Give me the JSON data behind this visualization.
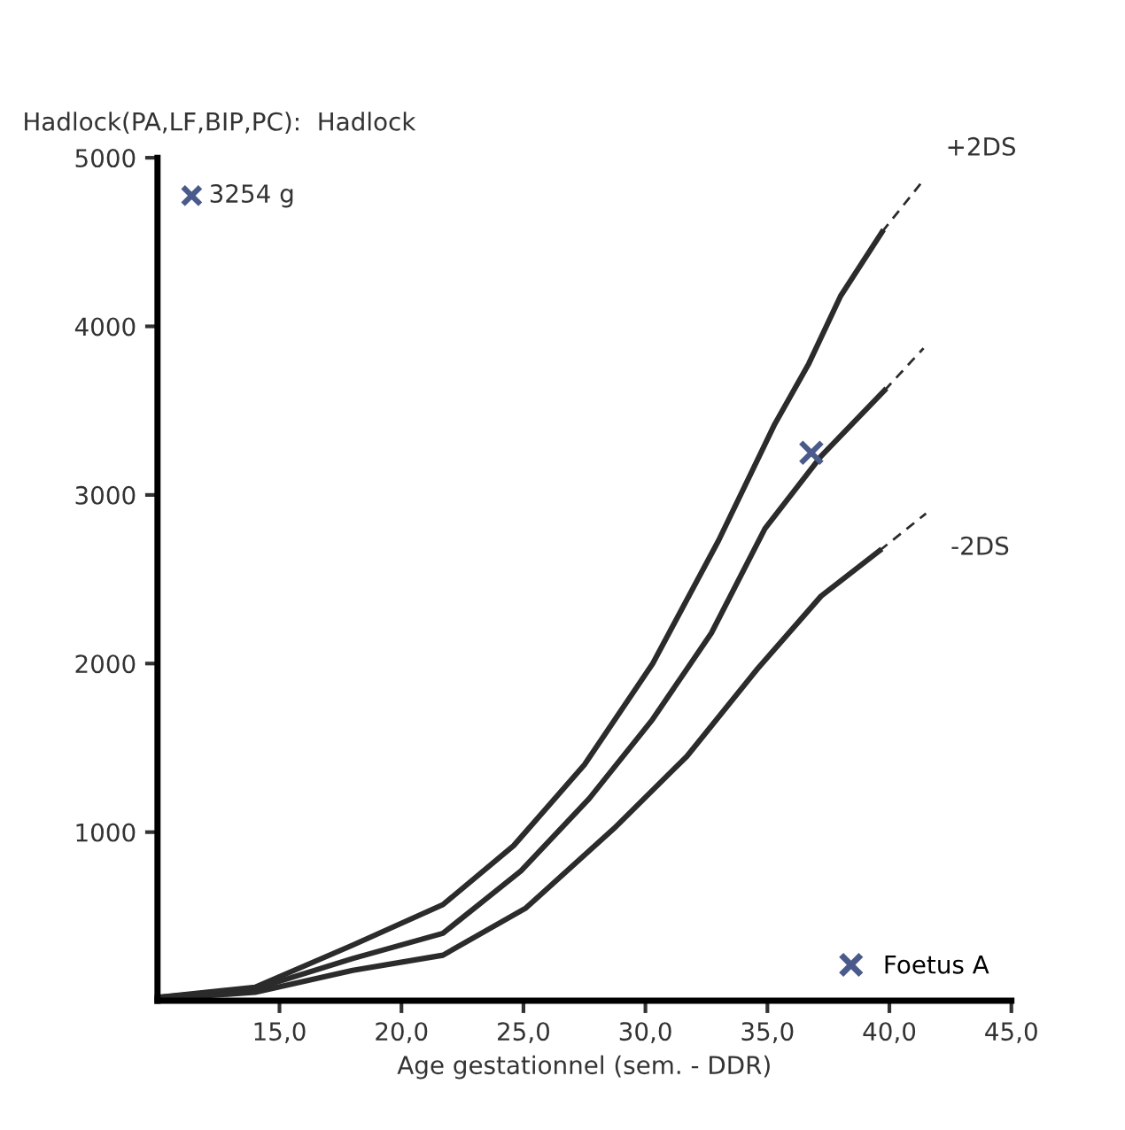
{
  "chart_data": {
    "type": "line",
    "title": "Hadlock(PA,LF,BIP,PC):  Hadlock",
    "xlabel": "Age gestationnel (sem. - DDR)",
    "xlim": [
      10,
      45
    ],
    "ylim": [
      0,
      5000
    ],
    "xticks": [
      {
        "value": 15,
        "label": "15,0"
      },
      {
        "value": 20,
        "label": "20,0"
      },
      {
        "value": 25,
        "label": "25,0"
      },
      {
        "value": 30,
        "label": "30,0"
      },
      {
        "value": 35,
        "label": "35,0"
      },
      {
        "value": 40,
        "label": "40,0"
      },
      {
        "value": 45,
        "label": "45,0"
      }
    ],
    "yticks": [
      1000,
      2000,
      3000,
      4000,
      5000
    ],
    "grid": false,
    "legend": "bottom right",
    "line_style": "solid",
    "annotations": [
      "3254 g"
    ],
    "series": [
      {
        "color": "#2b2b2b",
        "x": [
          10,
          14,
          18,
          21.7,
          24.6,
          27.5,
          30.3,
          33.0,
          35.3,
          36.7,
          38.0,
          39.7
        ],
        "values": [
          20,
          80,
          330,
          570,
          920,
          1400,
          2000,
          2730,
          3420,
          3780,
          4180,
          4560
        ]
      },
      {
        "color": "#2b2b2b",
        "x": [
          10,
          14,
          18,
          21.7,
          24.9,
          27.7,
          30.3,
          32.7,
          34.9,
          37.2,
          39.8
        ],
        "values": [
          20,
          70,
          250,
          400,
          770,
          1200,
          1670,
          2180,
          2800,
          3230,
          3620
        ]
      },
      {
        "color": "#2b2b2b",
        "x": [
          10,
          14,
          18,
          21.7,
          25.1,
          28.7,
          31.7,
          34.6,
          37.2,
          39.6
        ],
        "values": [
          10,
          50,
          180,
          270,
          550,
          1020,
          1450,
          1970,
          2400,
          2670
        ]
      },
      {
        "name": "+2DS",
        "color": "#2b2b2b",
        "line_style": "dashed",
        "x": [
          39.7,
          41.3
        ],
        "values": [
          4560,
          4850
        ]
      },
      {
        "color": "#2b2b2b",
        "line_style": "dashed",
        "x": [
          39.8,
          41.4
        ],
        "values": [
          3620,
          3870
        ]
      },
      {
        "name": "-2DS",
        "color": "#2b2b2b",
        "line_style": "dashed",
        "x": [
          39.6,
          41.5
        ],
        "values": [
          2670,
          2890
        ]
      },
      {
        "name": "Foetus A",
        "type": "scatter",
        "marker": "cross",
        "color": "#4a5a8a",
        "x": [
          36.8
        ],
        "values": [
          3250
        ]
      }
    ]
  }
}
